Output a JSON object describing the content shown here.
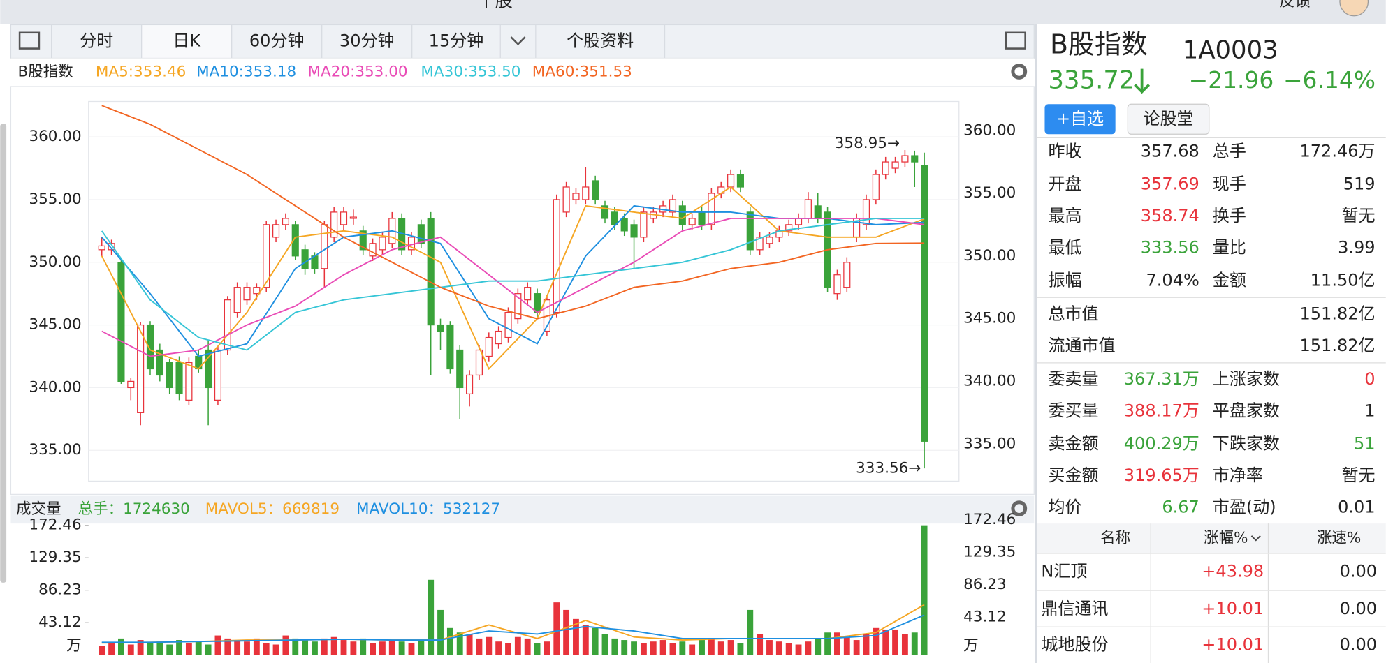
{
  "header": {
    "title": "个股",
    "feedback": "反馈"
  },
  "tabs": [
    "分时",
    "日K",
    "60分钟",
    "30分钟",
    "15分钟",
    "个股资料"
  ],
  "chart_data": [
    {
      "type": "candlestick",
      "title": "B股指数",
      "up_color": "#e8333b",
      "down_color": "#3aa33a",
      "ohlc": [
        [
          351,
          352,
          350.5,
          351.3
        ],
        [
          351,
          351.8,
          350.6,
          351.5
        ],
        [
          350,
          350.3,
          340.3,
          340.5
        ],
        [
          340,
          340.8,
          339,
          340.5
        ],
        [
          338,
          345.2,
          337,
          345
        ],
        [
          345,
          345.3,
          341,
          341.5
        ],
        [
          343,
          343.5,
          340.5,
          341
        ],
        [
          342,
          342.3,
          339.5,
          340
        ],
        [
          342,
          342.5,
          339,
          339.5
        ],
        [
          339,
          342.4,
          338.6,
          342
        ],
        [
          342.5,
          343,
          341.2,
          341.5
        ],
        [
          343,
          343.8,
          337,
          340
        ],
        [
          339,
          343.3,
          338.6,
          343
        ],
        [
          343,
          347.3,
          342.6,
          347
        ],
        [
          346,
          348.4,
          345.6,
          348
        ],
        [
          347,
          348.4,
          346.6,
          348
        ],
        [
          347.5,
          348.3,
          347,
          348
        ],
        [
          348,
          353.3,
          347.6,
          353
        ],
        [
          352,
          353.4,
          351.6,
          353
        ],
        [
          353,
          353.9,
          352.6,
          353.5
        ],
        [
          353,
          353.3,
          350.2,
          350.5
        ],
        [
          351,
          351.4,
          349,
          349.5
        ],
        [
          350.5,
          350.8,
          349.1,
          349.5
        ],
        [
          349.5,
          353.3,
          348,
          353
        ],
        [
          352,
          354.4,
          351.6,
          354
        ],
        [
          353,
          354.4,
          352.6,
          354
        ],
        [
          353.5,
          354.2,
          353,
          353.6
        ],
        [
          352.5,
          352.9,
          350.6,
          351
        ],
        [
          350.5,
          351.9,
          350.1,
          351.5
        ],
        [
          351,
          352.4,
          350.6,
          352
        ],
        [
          351.5,
          354,
          351.1,
          353.5
        ],
        [
          353.5,
          353.9,
          350.6,
          351
        ],
        [
          351,
          352.4,
          350.6,
          352
        ],
        [
          353,
          353.4,
          351.1,
          351.5
        ],
        [
          353.5,
          354,
          341,
          345
        ],
        [
          345,
          345.5,
          343,
          344.5
        ],
        [
          345,
          345.3,
          341.1,
          341.5
        ],
        [
          343,
          343.4,
          337.5,
          340
        ],
        [
          339.5,
          341.4,
          338.5,
          341
        ],
        [
          341,
          343.4,
          340.6,
          343
        ],
        [
          342.5,
          344.4,
          342.1,
          344
        ],
        [
          343.5,
          344.9,
          343.1,
          344.5
        ],
        [
          344,
          346.4,
          343.6,
          346
        ],
        [
          345.5,
          347.9,
          345.1,
          347.5
        ],
        [
          347,
          348.4,
          346.6,
          348
        ],
        [
          347.5,
          347.9,
          345.6,
          346
        ],
        [
          344.5,
          347.4,
          344.1,
          347
        ],
        [
          346,
          355.4,
          345.6,
          355
        ],
        [
          354,
          356.4,
          353.6,
          356
        ],
        [
          355,
          355.9,
          354.6,
          355.5
        ],
        [
          355,
          357.6,
          354.6,
          356
        ],
        [
          356.5,
          356.9,
          354.6,
          355
        ],
        [
          354.5,
          354.9,
          353.1,
          353.5
        ],
        [
          354,
          354.4,
          352.6,
          353
        ],
        [
          353.5,
          353.9,
          352.1,
          352.5
        ],
        [
          353,
          353.4,
          349.5,
          352
        ],
        [
          352,
          354.4,
          351.6,
          354
        ],
        [
          353.5,
          354.4,
          353.1,
          354
        ],
        [
          354,
          354.9,
          353.6,
          354.5
        ],
        [
          354,
          355.4,
          353.6,
          355
        ],
        [
          354.5,
          354.9,
          352.6,
          353
        ],
        [
          353,
          353.9,
          352.6,
          353.5
        ],
        [
          354,
          354.4,
          352.6,
          353
        ],
        [
          353,
          355.9,
          352.6,
          355.5
        ],
        [
          355.5,
          356.4,
          355.1,
          356
        ],
        [
          356,
          357.4,
          355.6,
          357
        ],
        [
          357,
          357.4,
          355.6,
          356
        ],
        [
          354,
          354.4,
          350.6,
          351
        ],
        [
          351,
          352.4,
          350.6,
          352
        ],
        [
          351.5,
          352.4,
          351.1,
          352
        ],
        [
          352,
          352.9,
          351.6,
          352.5
        ],
        [
          352.5,
          353.4,
          352.1,
          353
        ],
        [
          353,
          353.9,
          352.6,
          353.5
        ],
        [
          353.5,
          355.6,
          353.1,
          355
        ],
        [
          354.5,
          355.5,
          353.1,
          353.5
        ],
        [
          354,
          354.4,
          347.6,
          348
        ],
        [
          347.5,
          349.4,
          347,
          349
        ],
        [
          348,
          350.4,
          347.6,
          350
        ],
        [
          352,
          353.9,
          351.6,
          353.5
        ],
        [
          353,
          355.4,
          352.6,
          355
        ],
        [
          355,
          357.4,
          354.6,
          357
        ],
        [
          357,
          358.4,
          356.6,
          358
        ],
        [
          357.5,
          358.4,
          357.1,
          358
        ],
        [
          358,
          358.95,
          357.6,
          358.5
        ],
        [
          358.5,
          358.9,
          356,
          358
        ],
        [
          357.69,
          358.74,
          333.56,
          335.72
        ]
      ],
      "series": [
        {
          "name": "MA5:353.46",
          "color": "#f5a623",
          "x": [
            0,
            5,
            10,
            15,
            20,
            25,
            30,
            35,
            40,
            45,
            50,
            55,
            60,
            65,
            70,
            75,
            80,
            85
          ],
          "values": [
            350.5,
            343,
            341.5,
            346,
            352,
            352.5,
            352,
            350,
            341.5,
            345.5,
            354.5,
            354,
            353.5,
            356,
            352.5,
            352,
            352,
            353.46
          ]
        },
        {
          "name": "MA10:353.18",
          "color": "#1e8fe0",
          "x": [
            0,
            5,
            10,
            15,
            20,
            25,
            30,
            35,
            40,
            45,
            50,
            55,
            60,
            65,
            70,
            75,
            80,
            85
          ],
          "values": [
            352,
            347.5,
            342.5,
            343.5,
            349.5,
            352,
            352.5,
            351.5,
            345.5,
            343.5,
            350.5,
            354.5,
            354,
            354,
            353.5,
            353.5,
            353,
            353.18
          ]
        },
        {
          "name": "MA20:353.00",
          "color": "#e94bb6",
          "x": [
            0,
            5,
            10,
            15,
            20,
            25,
            30,
            35,
            40,
            45,
            50,
            55,
            60,
            65,
            70,
            75,
            80,
            85
          ],
          "values": [
            344.5,
            342.5,
            343,
            345,
            346.5,
            349,
            351,
            352,
            349,
            346,
            348,
            350,
            352.5,
            353.5,
            353.5,
            353.5,
            353.5,
            353.0
          ]
        },
        {
          "name": "MA30:353.50",
          "color": "#35c5d6",
          "x": [
            0,
            5,
            10,
            15,
            20,
            25,
            30,
            35,
            40,
            45,
            50,
            55,
            60,
            65,
            70,
            75,
            80,
            85
          ],
          "values": [
            352.5,
            347,
            344,
            343,
            346,
            347,
            347.5,
            348,
            348.5,
            348.5,
            349,
            349.5,
            350,
            351,
            352.5,
            353,
            353.5,
            353.5
          ]
        },
        {
          "name": "MA60:351.53",
          "color": "#f26522",
          "x": [
            0,
            5,
            10,
            15,
            20,
            25,
            30,
            35,
            40,
            45,
            50,
            55,
            60,
            65,
            70,
            75,
            80,
            85
          ],
          "values": [
            362.5,
            361,
            359,
            357,
            354.5,
            352,
            350,
            348,
            346.5,
            345.5,
            346.5,
            348,
            348.5,
            349.5,
            350,
            351,
            351.5,
            351.53
          ]
        }
      ],
      "ylim": [
        332.54,
        362.82
      ],
      "yticks": [
        {
          "value": 360,
          "label": "360.00"
        },
        {
          "value": 355,
          "label": "355.00"
        },
        {
          "value": 350,
          "label": "350.00"
        },
        {
          "value": 345,
          "label": "345.00"
        },
        {
          "value": 340,
          "label": "340.00"
        },
        {
          "value": 335,
          "label": "335.00"
        }
      ],
      "grid": true,
      "annotations": [
        "358.95→",
        "333.56→"
      ]
    },
    {
      "type": "bar",
      "title": "成交量",
      "total_label": "总手：1724630",
      "total_color": "#3aa33a",
      "values": [
        12,
        16,
        22,
        14,
        20,
        16,
        18,
        14,
        20,
        16,
        18,
        14,
        26,
        22,
        20,
        18,
        22,
        16,
        14,
        26,
        22,
        20,
        18,
        22,
        24,
        20,
        18,
        22,
        16,
        18,
        20,
        18,
        16,
        20,
        100,
        60,
        36,
        30,
        28,
        22,
        24,
        18,
        16,
        24,
        22,
        16,
        18,
        70,
        60,
        48,
        40,
        36,
        28,
        22,
        20,
        18,
        16,
        18,
        20,
        16,
        18,
        14,
        20,
        22,
        18,
        20,
        16,
        60,
        28,
        20,
        18,
        16,
        14,
        18,
        22,
        30,
        30,
        24,
        20,
        28,
        36,
        34,
        34,
        28,
        30,
        172.46
      ],
      "series": [
        {
          "name": "MAVOL5：669819",
          "color": "#f5a623",
          "x": [
            0,
            5,
            10,
            15,
            20,
            25,
            30,
            35,
            40,
            45,
            50,
            55,
            60,
            65,
            70,
            75,
            80,
            85
          ],
          "values": [
            16,
            17,
            18,
            20,
            20,
            21,
            20,
            20,
            40,
            22,
            46,
            24,
            20,
            22,
            22,
            22,
            30,
            66.98
          ]
        },
        {
          "name": "MAVOL10：532127",
          "color": "#1e8fe0",
          "x": [
            0,
            5,
            10,
            15,
            20,
            25,
            30,
            35,
            40,
            45,
            50,
            55,
            60,
            65,
            70,
            75,
            80,
            85
          ],
          "values": [
            17,
            17,
            18,
            19,
            20,
            21,
            20,
            20,
            32,
            28,
            38,
            32,
            22,
            22,
            22,
            22,
            26,
            53.21
          ]
        }
      ],
      "ylim": [
        0,
        172.46
      ],
      "yticks": [
        43.12,
        86.23,
        129.35,
        172.46
      ],
      "unit": "万"
    }
  ],
  "quote": {
    "name": "B股指数",
    "code": "1A0003",
    "price": "335.72",
    "change": "−21.96",
    "change_pct": "−6.14%",
    "color": "#3aa33a",
    "buttons": [
      "+自选",
      "论股堂"
    ]
  },
  "stats": [
    [
      {
        "label": "昨收",
        "value": "357.68"
      },
      {
        "label": "总手",
        "value": "172.46万"
      }
    ],
    [
      {
        "label": "开盘",
        "value": "357.69",
        "color": "#e8333b"
      },
      {
        "label": "现手",
        "value": "519"
      }
    ],
    [
      {
        "label": "最高",
        "value": "358.74",
        "color": "#e8333b"
      },
      {
        "label": "换手",
        "value": "暂无"
      }
    ],
    [
      {
        "label": "最低",
        "value": "333.56",
        "color": "#3aa33a"
      },
      {
        "label": "量比",
        "value": "3.99"
      }
    ],
    [
      {
        "label": "振幅",
        "value": "7.04%"
      },
      {
        "label": "金额",
        "value": "11.50亿"
      }
    ]
  ],
  "market": [
    {
      "label": "总市值",
      "value": "151.82亿"
    },
    {
      "label": "流通市值",
      "value": "151.82亿"
    }
  ],
  "orders": [
    [
      {
        "label": "委卖量",
        "value": "367.31万",
        "color": "#3aa33a"
      },
      {
        "label": "上涨家数",
        "value": "0",
        "color": "#e8333b"
      }
    ],
    [
      {
        "label": "委买量",
        "value": "388.17万",
        "color": "#e8333b"
      },
      {
        "label": "平盘家数",
        "value": "1"
      }
    ],
    [
      {
        "label": "卖金额",
        "value": "400.29万",
        "color": "#3aa33a"
      },
      {
        "label": "下跌家数",
        "value": "51",
        "color": "#3aa33a"
      }
    ],
    [
      {
        "label": "买金额",
        "value": "319.65万",
        "color": "#e8333b"
      },
      {
        "label": "市净率",
        "value": "暂无"
      }
    ],
    [
      {
        "label": "均价",
        "value": "6.67",
        "color": "#3aa33a"
      },
      {
        "label": "市盈(动)",
        "value": "0.01"
      }
    ]
  ],
  "list": {
    "columns": [
      "名称",
      "涨幅%",
      "涨速%"
    ],
    "rows": [
      [
        "N汇顶",
        "+43.98",
        "0.00"
      ],
      [
        "鼎信通讯",
        "+10.01",
        "0.00"
      ],
      [
        "城地股份",
        "+10.01",
        "0.00"
      ]
    ],
    "up_color": "#e8333b"
  }
}
